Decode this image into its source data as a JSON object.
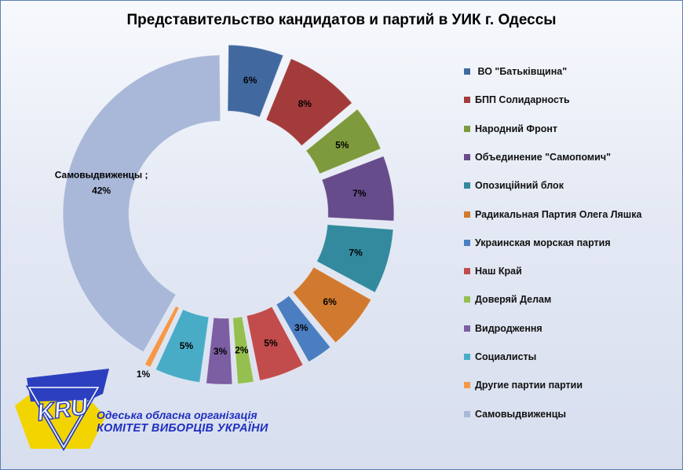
{
  "chart_data": {
    "type": "pie",
    "title": "Представительство кандидатов и партий в УИК г. Одессы",
    "series": [
      {
        "name": " ВО \"Батьківщина\"",
        "value": 6,
        "label": "6%",
        "color": "#4169a0"
      },
      {
        "name": "БПП Солидарность",
        "value": 8,
        "label": "8%",
        "color": "#a33b3b"
      },
      {
        "name": "Народний Фронт",
        "value": 5,
        "label": "5%",
        "color": "#7d9a3c"
      },
      {
        "name": "Объединение \"Самопомич\"",
        "value": 7,
        "label": "7%",
        "color": "#674c8c"
      },
      {
        "name": "Опозиційний блок",
        "value": 7,
        "label": "7%",
        "color": "#338a9e"
      },
      {
        "name": "Радикальная Партия Олега Ляшка",
        "value": 6,
        "label": "6%",
        "color": "#d17a2f"
      },
      {
        "name": "Украинская морская партия",
        "value": 3,
        "label": "3%",
        "color": "#4a7ec0"
      },
      {
        "name": "Наш Край",
        "value": 5,
        "label": "5%",
        "color": "#c24b4b"
      },
      {
        "name": "Доверяй Делам",
        "value": 2,
        "label": "2%",
        "color": "#95bf4f"
      },
      {
        "name": "Видродження",
        "value": 3,
        "label": "3%",
        "color": "#7c5ea3"
      },
      {
        "name": "Социалисты",
        "value": 5,
        "label": "5%",
        "color": "#49acc6"
      },
      {
        "name": "Другие партии партии",
        "value": 1,
        "label": "1%",
        "color": "#f4994a"
      },
      {
        "name": "Самовыдвиженцы",
        "value": 42,
        "label": "Самовыдвиженцы ;\n42%",
        "color": "#a9b8d8"
      }
    ],
    "legend_position": "right"
  },
  "logo": {
    "text": "KRU",
    "colors": {
      "blue": "#2b3fbf",
      "yellow": "#f2d500"
    }
  },
  "org": {
    "line1": "Одеська обласна організація",
    "line2": "КОМІТЕТ ВИБОРЦІВ УКРАЇНИ"
  }
}
